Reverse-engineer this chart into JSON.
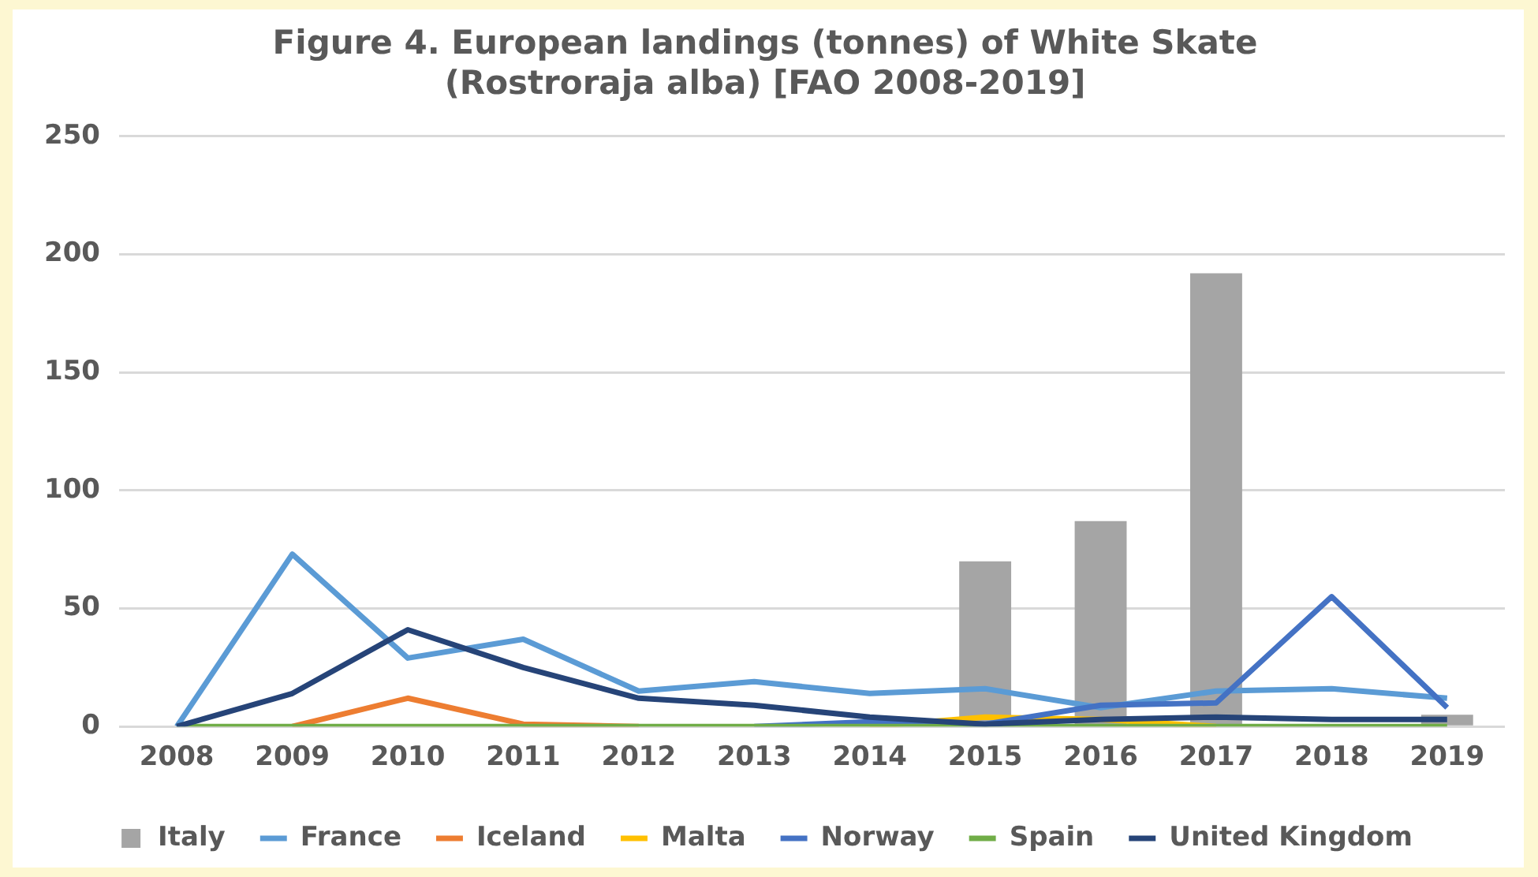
{
  "chart_data": {
    "type": "line",
    "title": "Figure 4. European landings (tonnes) of White Skate\n(Rostroraja alba) [FAO 2008-2019]",
    "categories": [
      "2008",
      "2009",
      "2010",
      "2011",
      "2012",
      "2013",
      "2014",
      "2015",
      "2016",
      "2017",
      "2018",
      "2019"
    ],
    "series": [
      {
        "name": "Italy",
        "type": "bar",
        "color": "#a5a5a5",
        "values": [
          0,
          0,
          0,
          0,
          0,
          0,
          0,
          70,
          87,
          192,
          0,
          5
        ]
      },
      {
        "name": "France",
        "color": "#5b9bd5",
        "values": [
          0,
          73,
          29,
          37,
          15,
          19,
          14,
          16,
          8,
          15,
          16,
          12
        ]
      },
      {
        "name": "Iceland",
        "color": "#ed7d31",
        "values": [
          null,
          0,
          12,
          1,
          0,
          null,
          null,
          null,
          null,
          null,
          null,
          null
        ]
      },
      {
        "name": "Malta",
        "color": "#ffc000",
        "values": [
          null,
          null,
          null,
          null,
          null,
          null,
          0,
          4,
          3,
          0,
          null,
          null
        ]
      },
      {
        "name": "Norway",
        "color": "#4472c4",
        "values": [
          null,
          null,
          null,
          null,
          null,
          0,
          2,
          1,
          9,
          10,
          55,
          8
        ]
      },
      {
        "name": "Spain",
        "color": "#70ad47",
        "values": [
          0,
          0,
          0,
          0,
          0,
          0,
          0,
          0,
          0,
          0,
          0,
          0
        ]
      },
      {
        "name": "United Kingdom",
        "color": "#264478",
        "values": [
          0,
          14,
          41,
          25,
          12,
          9,
          4,
          1,
          3,
          4,
          3,
          3
        ]
      }
    ],
    "ylim": [
      0,
      250
    ],
    "yticks": [
      0,
      50,
      100,
      150,
      200,
      250
    ],
    "grid": "y",
    "legend": "bottom",
    "marker": "none",
    "line_style": "solid"
  }
}
